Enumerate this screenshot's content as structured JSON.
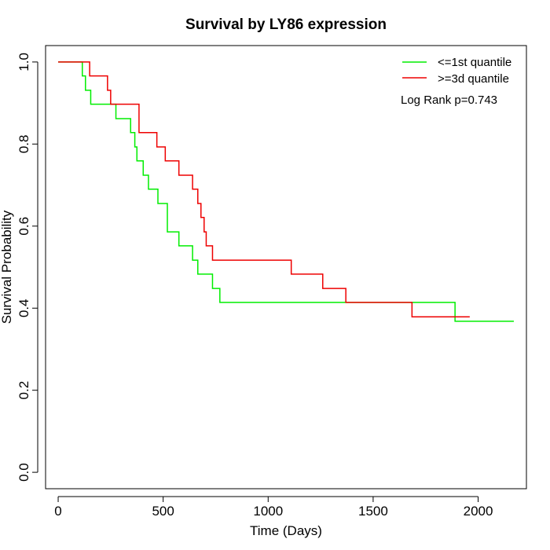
{
  "chart_data": {
    "type": "line",
    "title": "Survival by LY86 expression",
    "xlabel": "Time (Days)",
    "ylabel": "Survival Probability",
    "xlim": [
      -60,
      2230
    ],
    "ylim": [
      -0.04,
      1.04
    ],
    "x_ticks": [
      0,
      500,
      1000,
      1500,
      2000
    ],
    "y_ticks": [
      0.0,
      0.2,
      0.4,
      0.6,
      0.8,
      1.0
    ],
    "x_tick_labels": [
      "0",
      "500",
      "1000",
      "1500",
      "2000"
    ],
    "y_tick_labels": [
      "0.0",
      "0.2",
      "0.4",
      "0.6",
      "0.8",
      "1.0"
    ],
    "grid": false,
    "legend_position": "top-right",
    "annotation": "Log Rank p=0.743",
    "series": [
      {
        "name": "<=1st quantile",
        "color": "#00ee00",
        "x": [
          0,
          115,
          130,
          155,
          275,
          345,
          365,
          375,
          405,
          430,
          475,
          520,
          575,
          640,
          665,
          735,
          770,
          1890,
          2170
        ],
        "y": [
          1.0,
          0.966,
          0.931,
          0.897,
          0.862,
          0.828,
          0.793,
          0.759,
          0.724,
          0.69,
          0.655,
          0.586,
          0.552,
          0.517,
          0.483,
          0.448,
          0.414,
          0.368,
          0.368
        ]
      },
      {
        "name": ">=3d quantile",
        "color": "#ee0000",
        "x": [
          0,
          150,
          235,
          250,
          385,
          470,
          510,
          575,
          640,
          665,
          680,
          695,
          705,
          735,
          1110,
          1260,
          1370,
          1685,
          1960
        ],
        "y": [
          1.0,
          0.966,
          0.931,
          0.897,
          0.828,
          0.793,
          0.759,
          0.724,
          0.69,
          0.655,
          0.621,
          0.586,
          0.552,
          0.517,
          0.483,
          0.448,
          0.414,
          0.379,
          0.379
        ]
      }
    ]
  }
}
